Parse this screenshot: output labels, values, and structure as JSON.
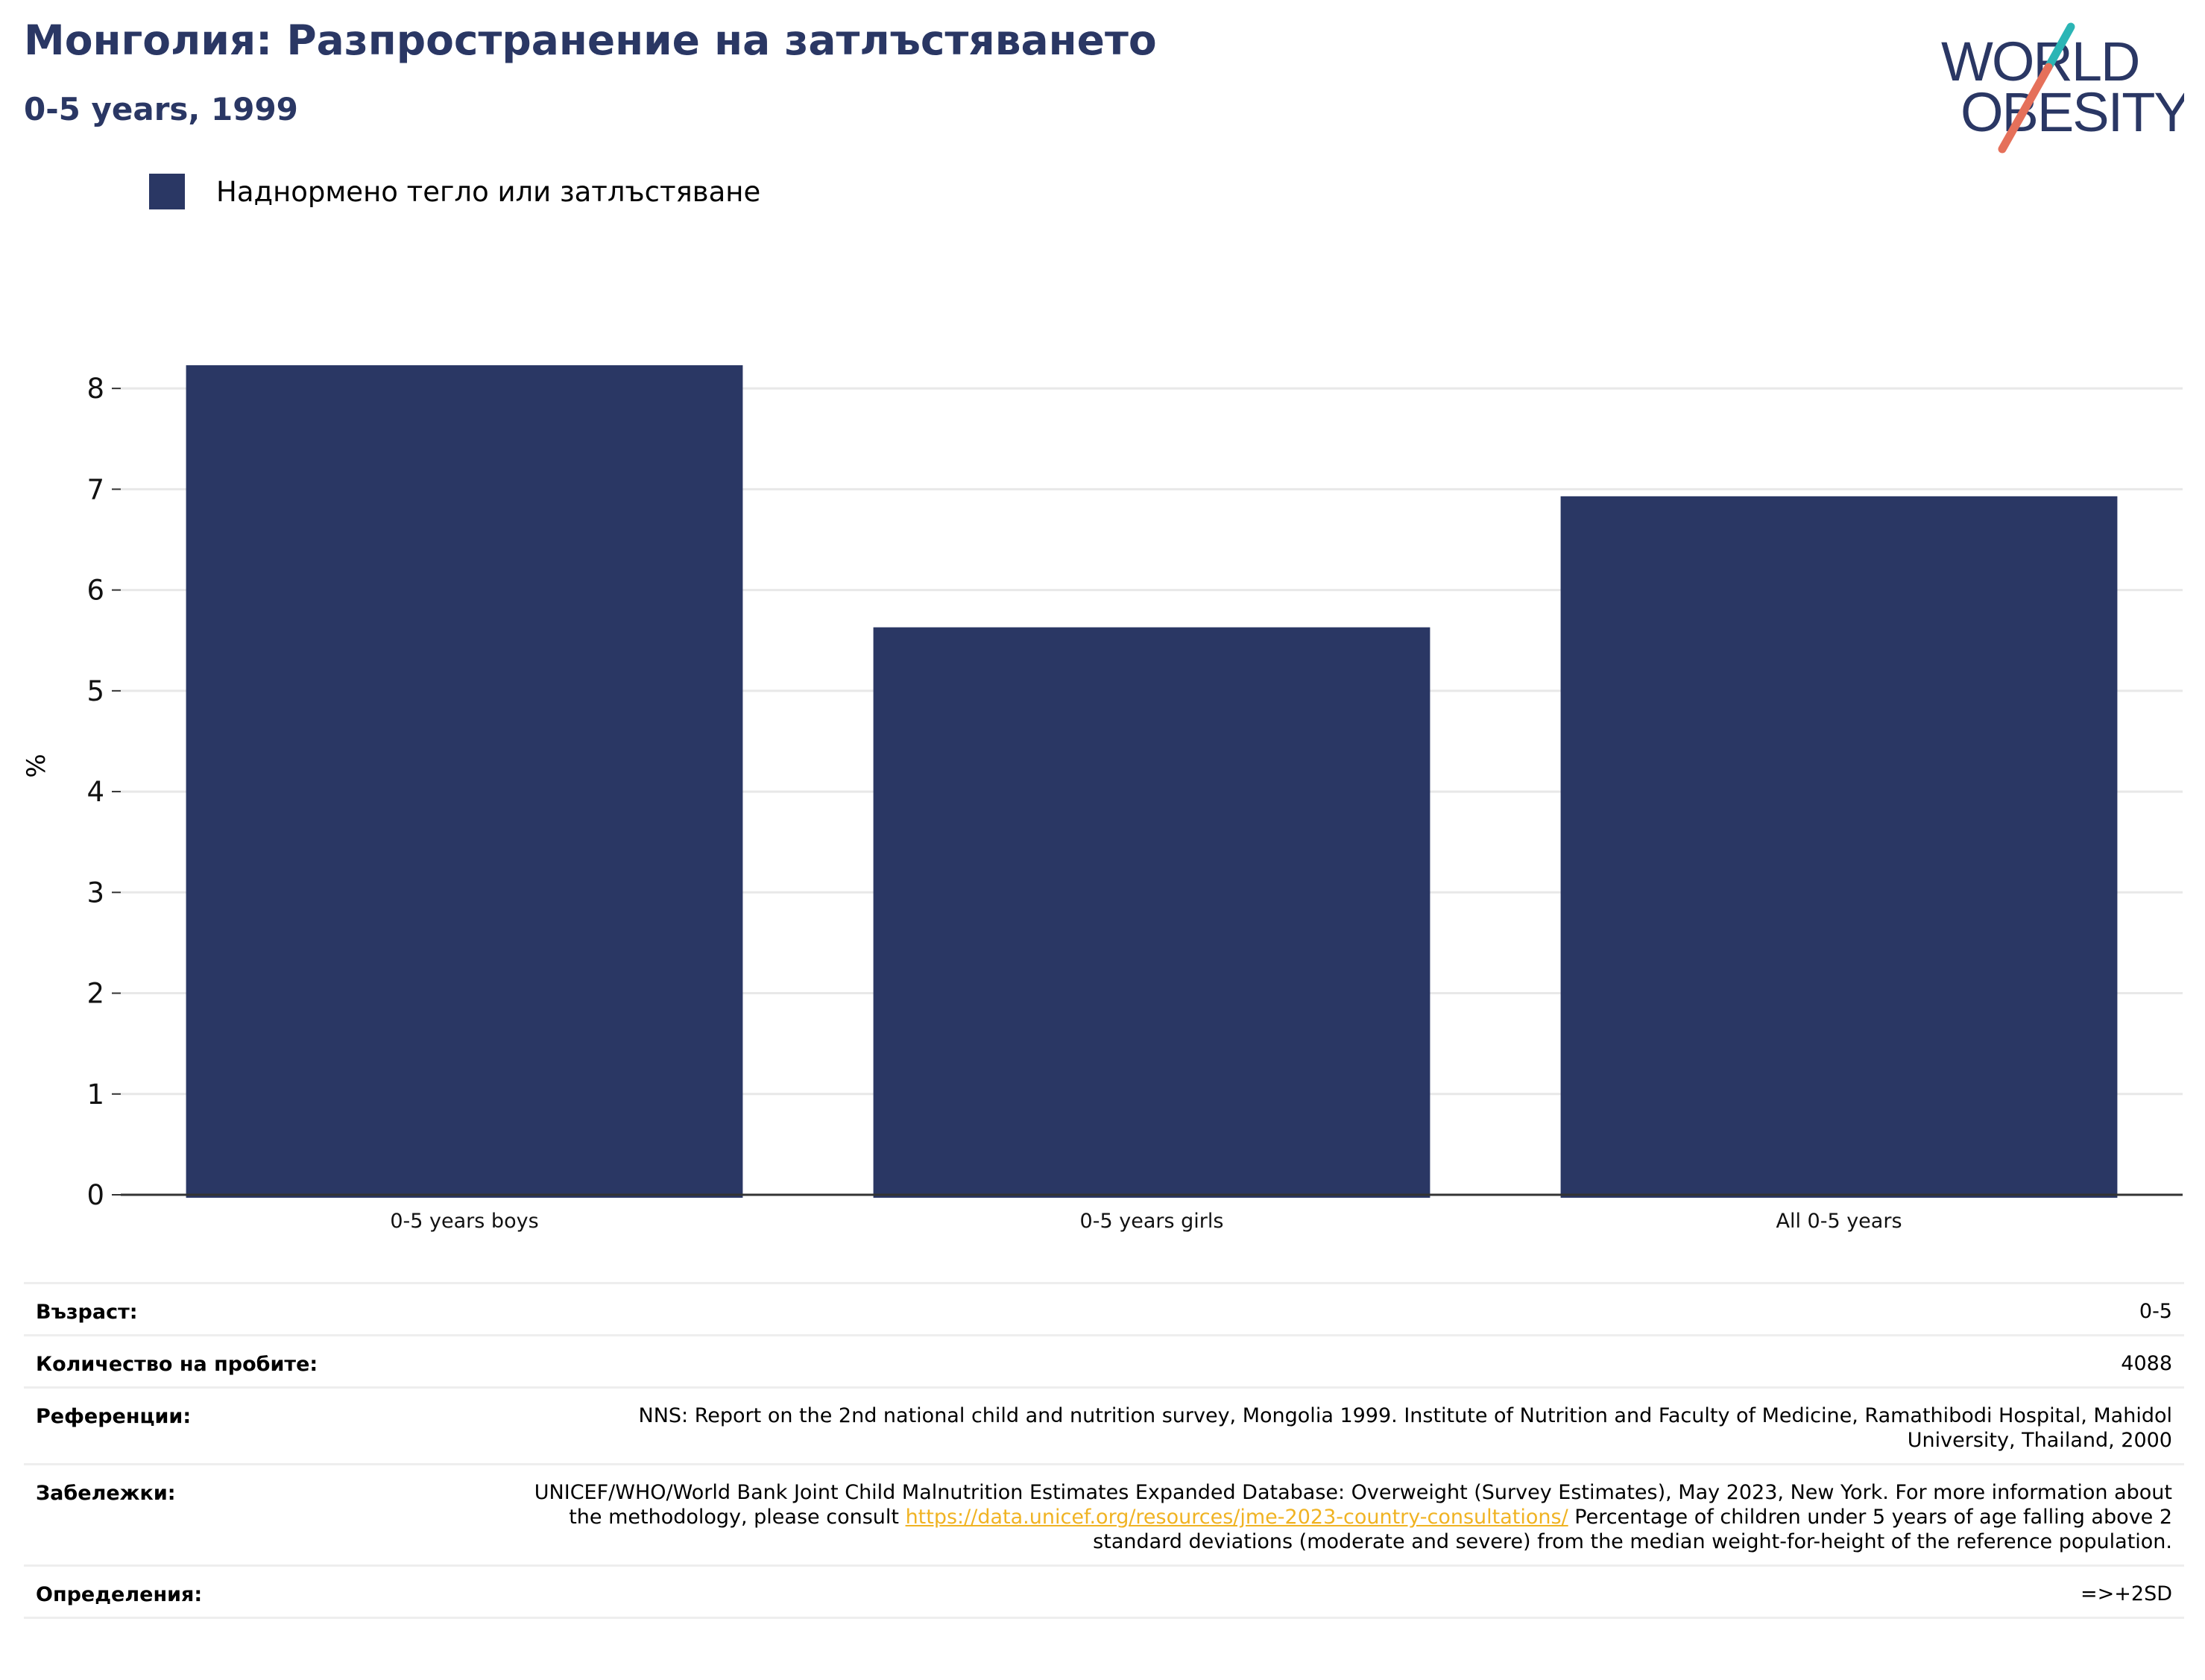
{
  "header": {
    "title": "Монголия: Разпространение на затлъстяването",
    "subtitle": "0-5 years, 1999"
  },
  "logo": {
    "line1": "WORLD",
    "line2": "OBESITY",
    "colors": {
      "text": "#2a3764",
      "slash_top": "#2bb5b5",
      "slash_bottom": "#e5705a"
    }
  },
  "colors": {
    "bar": "#2a3764",
    "axis": "#333333",
    "grid": "#e8e8e8",
    "link": "#f0b323"
  },
  "chart_data": {
    "type": "bar",
    "legend": {
      "label": "Наднормено тегло или затлъстяване",
      "position": "top-left"
    },
    "categories": [
      "0-5 years boys",
      "0-5 years girls",
      "All 0-5 years"
    ],
    "values": [
      8.23,
      5.63,
      6.93
    ],
    "ylabel": "%",
    "xlabel": "",
    "yticks": [
      "0",
      "1",
      "2",
      "3",
      "4",
      "5",
      "6",
      "7",
      "8"
    ],
    "ylim": [
      0,
      8.6
    ],
    "grid": true
  },
  "meta": {
    "age": {
      "label": "Възраст:",
      "value": "0-5"
    },
    "sample": {
      "label": "Количество на пробите:",
      "value": "4088"
    },
    "references": {
      "label": "Референции:",
      "value": "NNS: Report on the 2nd national child and nutrition survey, Mongolia 1999. Institute of Nutrition and Faculty of Medicine, Ramathibodi Hospital, Mahidol University, Thailand, 2000"
    },
    "notes": {
      "label": "Забележки:",
      "text_before": "UNICEF/WHO/World Bank Joint Child Malnutrition Estimates Expanded Database: Overweight (Survey Estimates), May 2023, New York. For more information about the methodology, please consult ",
      "link": "https://data.unicef.org/resources/jme-2023-country-consultations/",
      "text_after": " Percentage of children under 5 years of age falling above 2 standard deviations (moderate and severe) from the median weight-for-height of the reference population."
    },
    "definitions": {
      "label": "Определения:",
      "value": "=>+2SD"
    }
  }
}
